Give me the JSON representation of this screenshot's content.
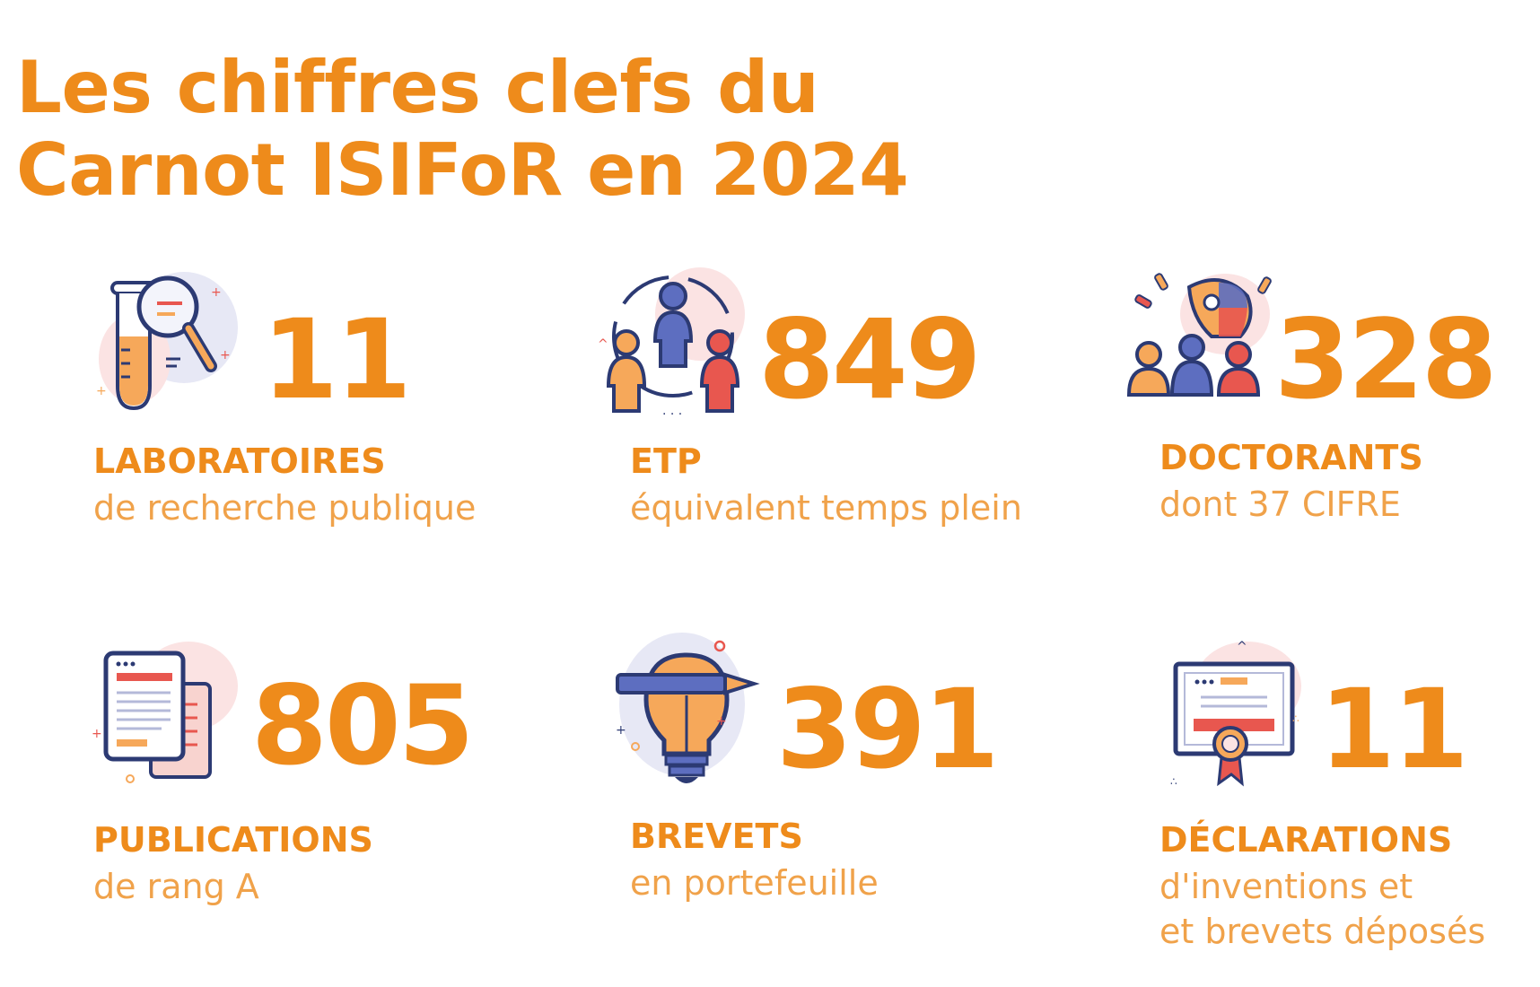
{
  "title": {
    "line1": "Les chiffres clefs du",
    "line2": "Carnot ISIFoR en 2024"
  },
  "stats": [
    {
      "value": "11",
      "label": "LABORATOIRES",
      "sublabel": "de recherche publique",
      "icon": "test-tube-magnifier-icon"
    },
    {
      "value": "849",
      "label": "ETP",
      "sublabel": "équivalent temps plein",
      "icon": "team-people-icon"
    },
    {
      "value": "328",
      "label": "DOCTORANTS",
      "sublabel": "dont 37 CIFRE",
      "icon": "lightbulb-people-icon"
    },
    {
      "value": "805",
      "label": "PUBLICATIONS",
      "sublabel": "de rang A",
      "icon": "documents-icon"
    },
    {
      "value": "391",
      "label": "BREVETS",
      "sublabel": "en portefeuille",
      "icon": "lightbulb-pencil-icon"
    },
    {
      "value": "11",
      "label": "DÉCLARATIONS",
      "sublabel_lines": [
        "d'inventions et",
        "et brevets déposés"
      ],
      "icon": "certificate-icon"
    }
  ],
  "colors": {
    "accent": "#ee8b1b",
    "accent_light": "#f0a24a",
    "icon_navy": "#2c3a73",
    "icon_orange": "#f6a85a",
    "icon_red": "#e8574f",
    "icon_blue": "#5d6ec0",
    "icon_blob": "#e7e8f5"
  }
}
